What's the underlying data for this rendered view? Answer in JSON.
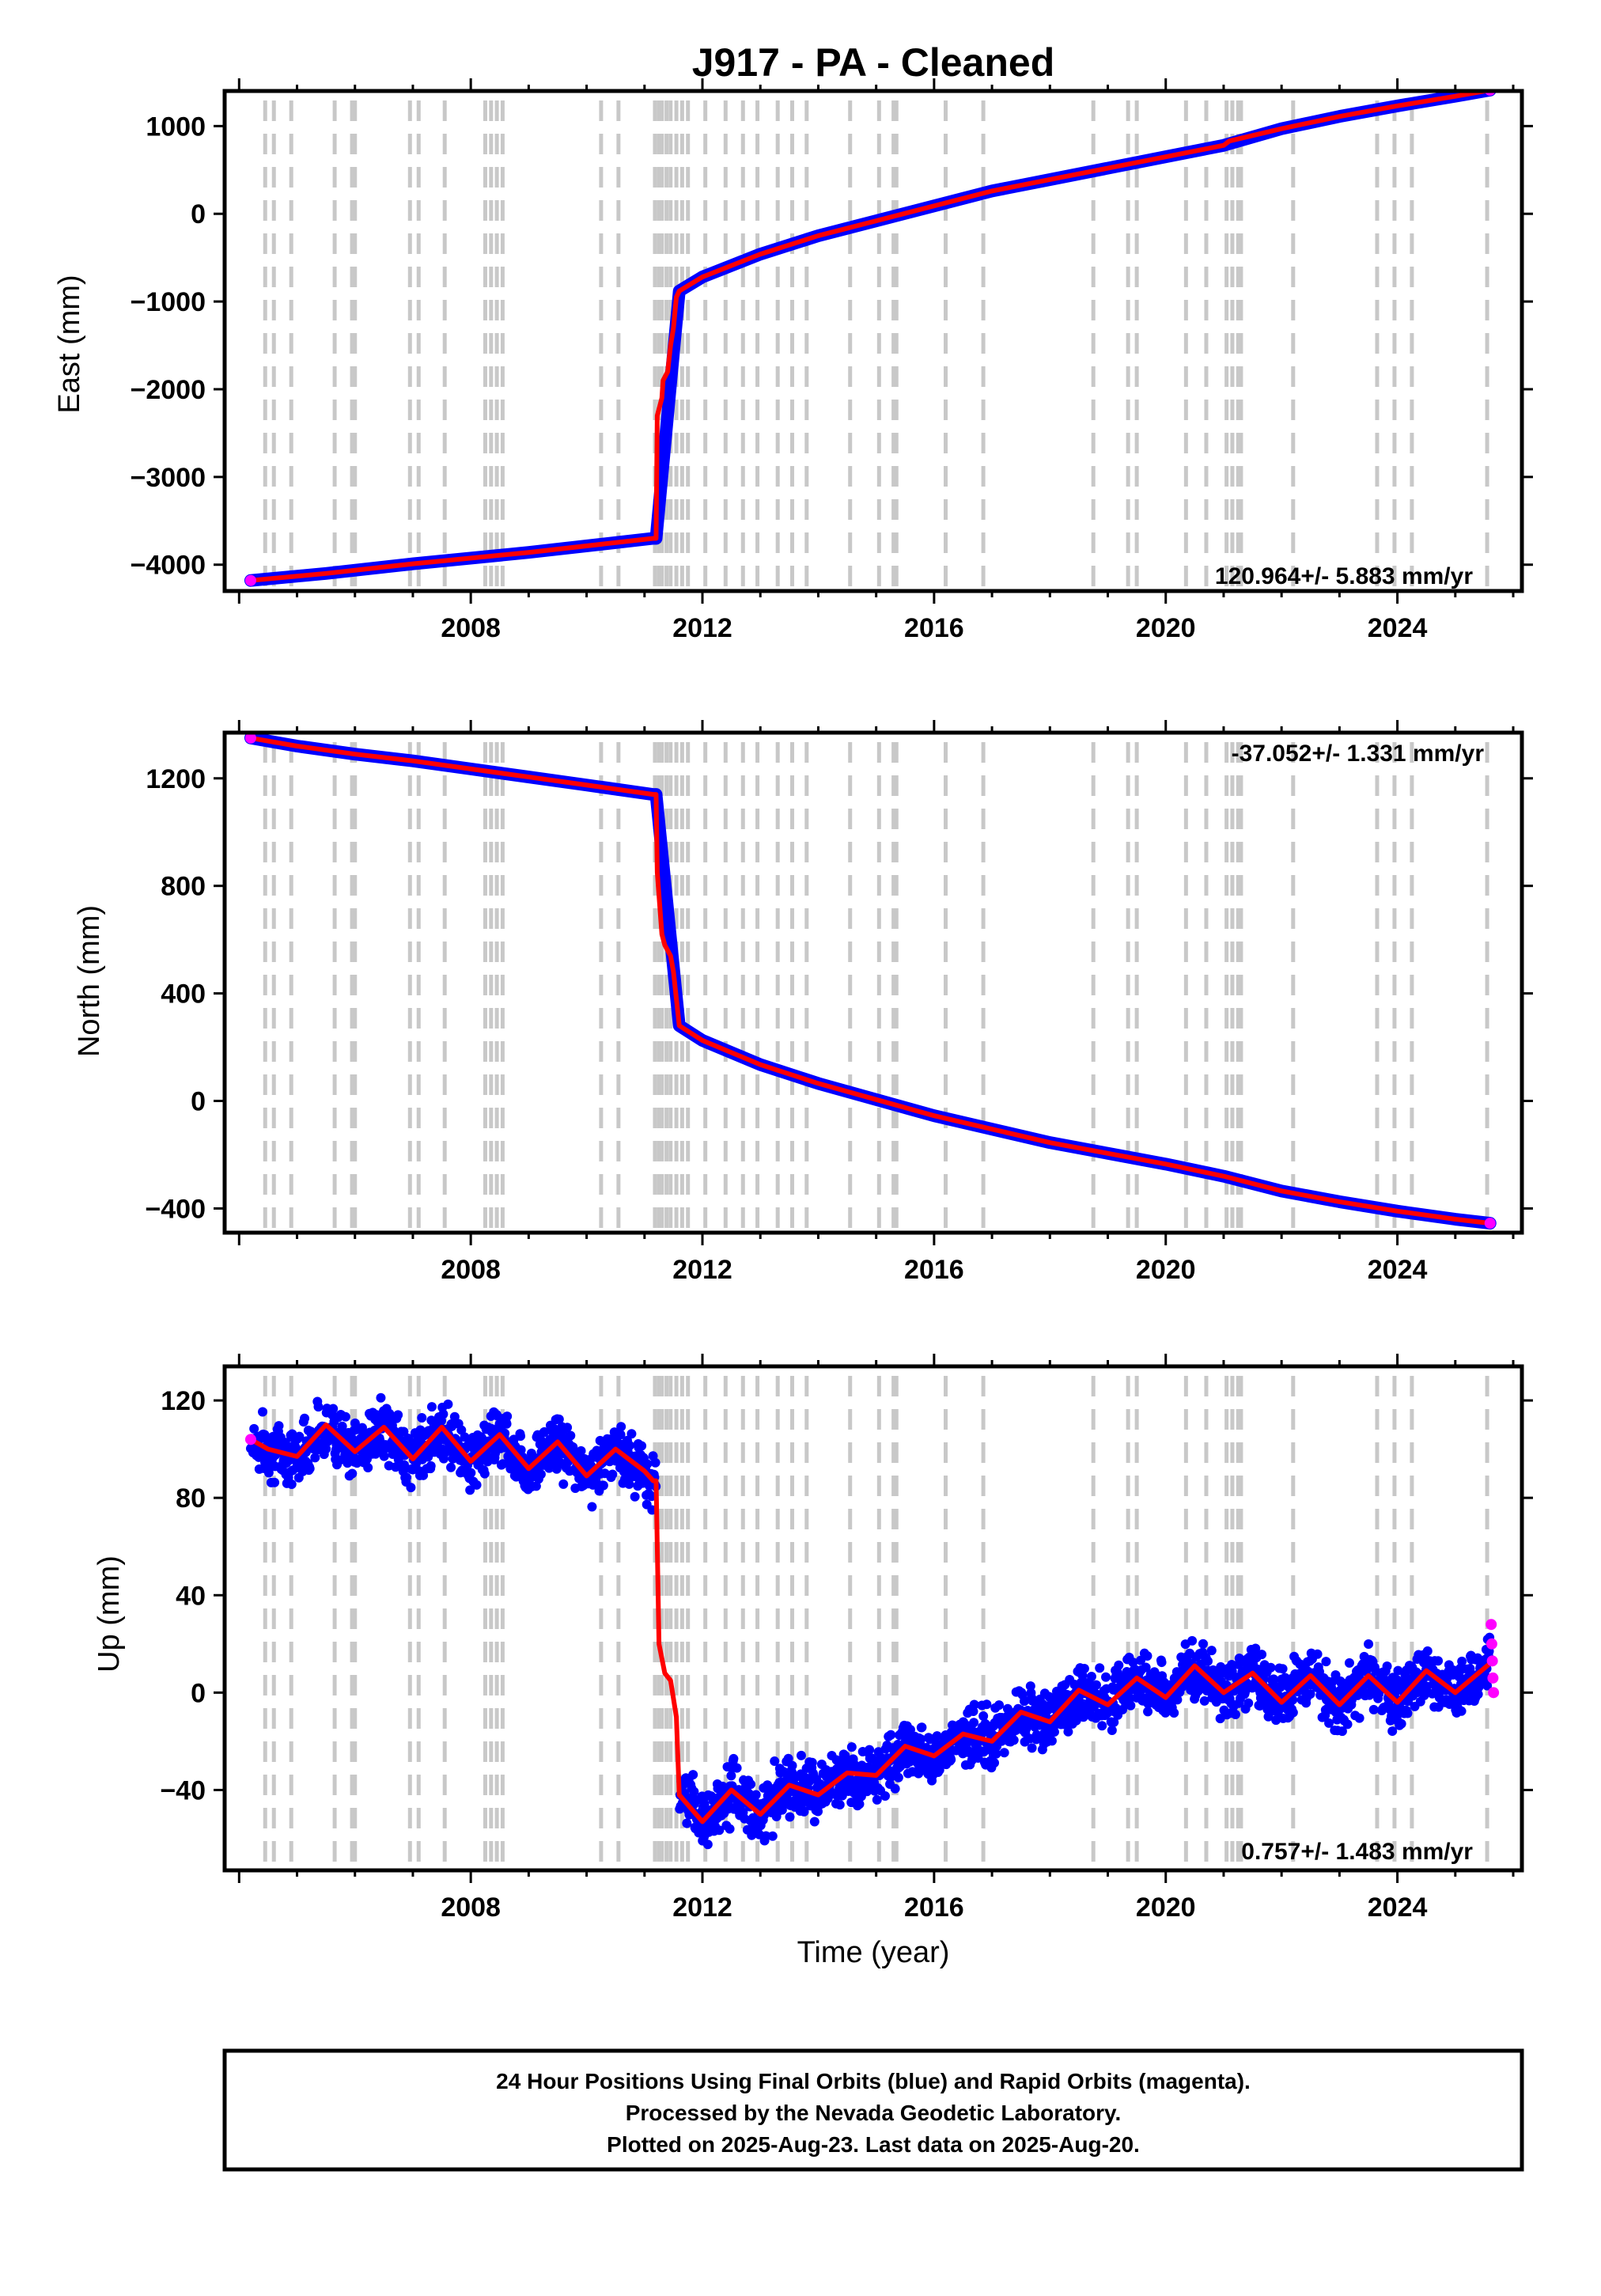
{
  "chart_data": {
    "type": "scatter",
    "title": "J917  - PA - Cleaned",
    "xlabel": "Time (year)",
    "xlim": [
      2003.75,
      2026.15
    ],
    "xticks": [
      "2008",
      "2012",
      "2016",
      "2020",
      "2024"
    ],
    "event_years": [
      2004.45,
      2004.6,
      2004.9,
      2005.65,
      2005.95,
      2006.0,
      2006.95,
      2007.1,
      2007.55,
      2008.25,
      2008.35,
      2008.45,
      2008.55,
      2010.25,
      2010.55,
      2011.18,
      2011.25,
      2011.3,
      2011.38,
      2011.45,
      2011.55,
      2011.65,
      2011.75,
      2012.05,
      2012.4,
      2012.7,
      2012.95,
      2013.3,
      2013.55,
      2013.8,
      2014.55,
      2015.05,
      2015.3,
      2015.35,
      2016.2,
      2016.85,
      2018.75,
      2019.35,
      2019.5,
      2020.35,
      2020.7,
      2021.05,
      2021.15,
      2021.25,
      2021.3,
      2022.2,
      2023.65,
      2023.95,
      2024.25,
      2025.55
    ],
    "panels": [
      {
        "ylabel": "East (mm)",
        "ylim": [
          -4300,
          1400
        ],
        "yticks": [
          "1000",
          "0",
          "−1000",
          "−2000",
          "−3000",
          "−4000"
        ],
        "rate_text": "120.964+/- 5.883 mm/yr",
        "rate_position": "bottom-right",
        "series": [
          {
            "name": "Final Orbits",
            "color": "#0000ff",
            "x": [
              2004.2,
              2005.5,
              2007.0,
              2009.0,
              2011.15,
              2011.2,
              2011.6,
              2012.0,
              2013.0,
              2014.0,
              2015.0,
              2016.0,
              2017.0,
              2018.0,
              2019.0,
              2020.0,
              2021.0,
              2022.0,
              2023.0,
              2024.0,
              2025.0,
              2025.6
            ],
            "y": [
              -4180,
              -4100,
              -3990,
              -3860,
              -3700,
              -3700,
              -880,
              -720,
              -460,
              -250,
              -80,
              90,
              260,
              390,
              520,
              650,
              780,
              970,
              1110,
              1230,
              1340,
              1410
            ]
          }
        ],
        "fit": {
          "name": "model",
          "color": "#ff0000",
          "x": [
            2004.2,
            2005.5,
            2007.0,
            2009.0,
            2011.15,
            2011.2,
            2011.22,
            2011.3,
            2011.32,
            2011.4,
            2011.45,
            2011.5,
            2011.55,
            2011.6,
            2012.0,
            2013.0,
            2014.0,
            2015.0,
            2016.0,
            2017.0,
            2018.0,
            2019.0,
            2020.0,
            2021.0,
            2021.1,
            2022.0,
            2023.0,
            2024.0,
            2025.0,
            2025.6
          ],
          "y": [
            -4180,
            -4100,
            -3990,
            -3860,
            -3700,
            -3700,
            -2300,
            -2100,
            -1900,
            -1800,
            -1500,
            -1300,
            -950,
            -880,
            -720,
            -460,
            -250,
            -80,
            90,
            260,
            390,
            520,
            650,
            780,
            830,
            970,
            1110,
            1230,
            1340,
            1410
          ]
        },
        "rapid": {
          "color": "#ff00ff",
          "x": [
            2025.6
          ],
          "y": [
            1410
          ]
        }
      },
      {
        "ylabel": "North (mm)",
        "ylim": [
          -490,
          1370
        ],
        "yticks": [
          "1200",
          "800",
          "400",
          "0",
          "−400"
        ],
        "rate_text": "-37.052+/- 1.331 mm/yr",
        "rate_position": "top-right",
        "series": [
          {
            "name": "Final Orbits",
            "color": "#0000ff",
            "x": [
              2004.2,
              2005.0,
              2006.0,
              2007.0,
              2008.0,
              2009.0,
              2010.0,
              2011.15,
              2011.2,
              2011.6,
              2012.0,
              2013.0,
              2014.0,
              2015.0,
              2016.0,
              2017.0,
              2018.0,
              2019.0,
              2020.0,
              2021.0,
              2022.0,
              2023.0,
              2024.0,
              2025.0,
              2025.6
            ],
            "y": [
              1350,
              1320,
              1290,
              1265,
              1235,
              1205,
              1175,
              1140,
              1140,
              280,
              225,
              135,
              65,
              5,
              -55,
              -105,
              -155,
              -195,
              -235,
              -280,
              -335,
              -375,
              -410,
              -440,
              -455
            ]
          }
        ],
        "fit": {
          "name": "model",
          "color": "#ff0000",
          "x": [
            2004.2,
            2005.0,
            2006.0,
            2007.0,
            2008.0,
            2009.0,
            2010.0,
            2011.15,
            2011.2,
            2011.22,
            2011.3,
            2011.35,
            2011.45,
            2011.5,
            2011.55,
            2011.6,
            2012.0,
            2013.0,
            2014.0,
            2015.0,
            2016.0,
            2017.0,
            2018.0,
            2019.0,
            2020.0,
            2021.0,
            2022.0,
            2023.0,
            2024.0,
            2025.0,
            2025.6
          ],
          "y": [
            1350,
            1320,
            1290,
            1265,
            1235,
            1205,
            1175,
            1140,
            1140,
            850,
            620,
            580,
            540,
            480,
            380,
            280,
            225,
            135,
            65,
            5,
            -55,
            -105,
            -155,
            -195,
            -235,
            -280,
            -335,
            -375,
            -410,
            -440,
            -455
          ]
        },
        "rapid": {
          "color": "#ff00ff",
          "x": [
            2025.6
          ],
          "y": [
            -455
          ]
        }
      },
      {
        "ylabel": "Up (mm)",
        "ylim": [
          -73,
          134
        ],
        "yticks": [
          "120",
          "80",
          "40",
          "0",
          "−40"
        ],
        "rate_text": "0.757+/- 1.483 mm/yr",
        "rate_position": "bottom-right",
        "scatter_spread_mm": 7,
        "series": [
          {
            "name": "Final Orbits",
            "color": "#0000ff",
            "x": [
              2004.2,
              2005.0,
              2006.0,
              2007.0,
              2008.0,
              2009.0,
              2010.0,
              2011.15,
              2011.2,
              2011.6,
              2012.0,
              2013.0,
              2014.0,
              2015.0,
              2016.0,
              2017.0,
              2018.0,
              2019.0,
              2020.0,
              2021.0,
              2022.0,
              2023.0,
              2024.0,
              2025.0,
              2025.6
            ],
            "y": [
              104,
              101,
              103,
              101,
              99,
              96,
              92,
              88,
              88,
              -45,
              -50,
              -42,
              -38,
              -33,
              -27,
              -21,
              -14,
              -5,
              0,
              3,
              4,
              5,
              5,
              8,
              10
            ]
          }
        ],
        "fit": {
          "name": "model",
          "color": "#ff0000",
          "x": [
            2004.2,
            2004.5,
            2005.0,
            2005.5,
            2006.0,
            2006.5,
            2007.0,
            2007.5,
            2008.0,
            2008.5,
            2009.0,
            2009.5,
            2010.0,
            2010.5,
            2011.0,
            2011.15,
            2011.2,
            2011.25,
            2011.35,
            2011.45,
            2011.55,
            2011.6,
            2012.0,
            2012.5,
            2013.0,
            2013.5,
            2014.0,
            2014.5,
            2015.0,
            2015.5,
            2016.0,
            2016.5,
            2017.0,
            2017.5,
            2018.0,
            2018.5,
            2019.0,
            2019.5,
            2020.0,
            2020.5,
            2021.0,
            2021.5,
            2022.0,
            2022.5,
            2023.0,
            2023.5,
            2024.0,
            2024.5,
            2025.0,
            2025.6
          ],
          "y": [
            104,
            100,
            97,
            110,
            99,
            109,
            96,
            109,
            95,
            106,
            92,
            103,
            89,
            100,
            91,
            87,
            87,
            20,
            8,
            5,
            -10,
            -42,
            -53,
            -40,
            -50,
            -38,
            -42,
            -33,
            -34,
            -22,
            -26,
            -17,
            -20,
            -8,
            -12,
            1,
            -5,
            6,
            -2,
            11,
            0,
            8,
            -4,
            7,
            -5,
            7,
            -4,
            9,
            0,
            12
          ]
        },
        "rapid": {
          "color": "#ff00ff",
          "x": [
            2025.62,
            2025.63,
            2025.64,
            2025.65,
            2025.66
          ],
          "y": [
            28,
            20,
            13,
            6,
            0
          ]
        }
      }
    ]
  },
  "footer": {
    "line1": "24 Hour Positions Using Final Orbits (blue) and Rapid Orbits (magenta).",
    "line2": "Processed by the Nevada Geodetic Laboratory.",
    "line3": "Plotted on 2025-Aug-23. Last data on 2025-Aug-20."
  }
}
